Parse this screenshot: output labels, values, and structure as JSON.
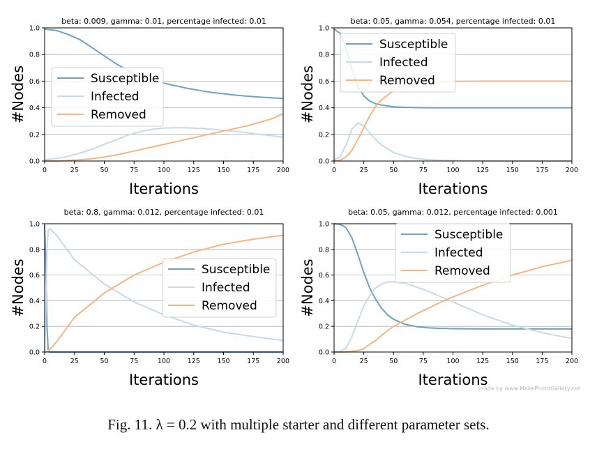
{
  "colors": {
    "susceptible": "#6fa0c6",
    "infected": "#c8d9ea",
    "removed": "#f6b684",
    "grid": "#b0b0b0",
    "axis": "#000000"
  },
  "caption": "Fig. 11.  λ = 0.2 with multiple starter and different parameter sets.",
  "watermark": "made by www.MakePhotoGallery.net",
  "chart_data": [
    {
      "type": "line",
      "title": "beta: 0.009, gamma: 0.01, percentage infected: 0.01",
      "xlabel": "Iterations",
      "ylabel": "#Nodes",
      "xlim": [
        0,
        200
      ],
      "ylim": [
        0,
        1.0
      ],
      "xticks": [
        0,
        25,
        50,
        75,
        100,
        125,
        150,
        175,
        200
      ],
      "yticks": [
        0.0,
        0.2,
        0.4,
        0.6,
        0.8,
        1.0
      ],
      "grid": "horizontal",
      "legend": "center-left",
      "x": [
        0,
        10,
        20,
        30,
        40,
        50,
        60,
        70,
        80,
        90,
        100,
        110,
        120,
        130,
        140,
        150,
        160,
        170,
        180,
        190,
        200
      ],
      "series": [
        {
          "name": "Susceptible",
          "values": [
            0.99,
            0.98,
            0.95,
            0.91,
            0.85,
            0.79,
            0.73,
            0.68,
            0.64,
            0.61,
            0.585,
            0.565,
            0.545,
            0.53,
            0.515,
            0.505,
            0.495,
            0.487,
            0.48,
            0.475,
            0.47
          ]
        },
        {
          "name": "Infected",
          "values": [
            0.01,
            0.02,
            0.035,
            0.06,
            0.09,
            0.125,
            0.16,
            0.195,
            0.22,
            0.238,
            0.247,
            0.25,
            0.249,
            0.245,
            0.239,
            0.231,
            0.222,
            0.212,
            0.2,
            0.19,
            0.178
          ]
        },
        {
          "name": "Removed",
          "values": [
            0.0,
            0.0,
            0.004,
            0.01,
            0.018,
            0.03,
            0.045,
            0.065,
            0.085,
            0.105,
            0.125,
            0.145,
            0.165,
            0.185,
            0.205,
            0.225,
            0.245,
            0.265,
            0.29,
            0.315,
            0.355
          ]
        }
      ]
    },
    {
      "type": "line",
      "title": "beta: 0.05, gamma: 0.054, percentage infected: 0.01",
      "xlabel": "Iterations",
      "ylabel": "#Nodes",
      "xlim": [
        0,
        200
      ],
      "ylim": [
        0,
        1.0
      ],
      "xticks": [
        0,
        25,
        50,
        75,
        100,
        125,
        150,
        175,
        200
      ],
      "yticks": [
        0.0,
        0.2,
        0.4,
        0.6,
        0.8,
        1.0
      ],
      "grid": "horizontal",
      "legend": "top-left",
      "x": [
        0,
        5,
        10,
        15,
        20,
        25,
        30,
        35,
        40,
        50,
        60,
        70,
        80,
        90,
        100,
        125,
        150,
        175,
        200
      ],
      "series": [
        {
          "name": "Susceptible",
          "values": [
            0.99,
            0.96,
            0.85,
            0.69,
            0.56,
            0.49,
            0.45,
            0.43,
            0.42,
            0.407,
            0.403,
            0.401,
            0.4,
            0.4,
            0.4,
            0.4,
            0.4,
            0.4,
            0.4
          ]
        },
        {
          "name": "Infected",
          "values": [
            0.01,
            0.03,
            0.12,
            0.24,
            0.285,
            0.265,
            0.21,
            0.16,
            0.12,
            0.065,
            0.035,
            0.018,
            0.01,
            0.005,
            0.003,
            0.001,
            0.0,
            0.0,
            0.0
          ]
        },
        {
          "name": "Removed",
          "values": [
            0.0,
            0.005,
            0.03,
            0.08,
            0.16,
            0.25,
            0.34,
            0.41,
            0.46,
            0.53,
            0.565,
            0.583,
            0.592,
            0.596,
            0.598,
            0.6,
            0.6,
            0.6,
            0.6
          ]
        }
      ]
    },
    {
      "type": "line",
      "title": "beta: 0.8, gamma: 0.012, percentage infected: 0.01",
      "xlabel": "Iterations",
      "ylabel": "#Nodes",
      "xlim": [
        0,
        200
      ],
      "ylim": [
        0,
        1.0
      ],
      "xticks": [
        0,
        25,
        50,
        75,
        100,
        125,
        150,
        175,
        200
      ],
      "yticks": [
        0.0,
        0.2,
        0.4,
        0.6,
        0.8,
        1.0
      ],
      "grid": "horizontal",
      "legend": "center-right",
      "x": [
        0,
        1,
        2,
        3,
        4,
        5,
        10,
        25,
        50,
        75,
        100,
        125,
        150,
        175,
        200
      ],
      "series": [
        {
          "name": "Susceptible",
          "values": [
            0.99,
            0.7,
            0.2,
            0.02,
            0.0,
            0.0,
            0.0,
            0.0,
            0.0,
            0.0,
            0.0,
            0.0,
            0.0,
            0.0,
            0.0
          ]
        },
        {
          "name": "Infected",
          "values": [
            0.01,
            0.3,
            0.79,
            0.95,
            0.96,
            0.96,
            0.91,
            0.72,
            0.53,
            0.39,
            0.29,
            0.21,
            0.155,
            0.12,
            0.09
          ]
        },
        {
          "name": "Removed",
          "values": [
            0.0,
            0.0,
            0.005,
            0.01,
            0.02,
            0.025,
            0.08,
            0.27,
            0.46,
            0.6,
            0.7,
            0.78,
            0.84,
            0.88,
            0.91
          ]
        }
      ]
    },
    {
      "type": "line",
      "title": "beta: 0.05, gamma: 0.012, percentage infected: 0.001",
      "xlabel": "Iterations",
      "ylabel": "#Nodes",
      "xlim": [
        0,
        200
      ],
      "ylim": [
        0,
        1.0
      ],
      "xticks": [
        0,
        25,
        50,
        75,
        100,
        125,
        150,
        175,
        200
      ],
      "yticks": [
        0.0,
        0.2,
        0.4,
        0.6,
        0.8,
        1.0
      ],
      "grid": "horizontal",
      "legend": "top-center",
      "x": [
        0,
        5,
        10,
        15,
        20,
        25,
        30,
        35,
        40,
        45,
        50,
        60,
        70,
        80,
        90,
        100,
        125,
        150,
        175,
        200
      ],
      "series": [
        {
          "name": "Susceptible",
          "values": [
            1.0,
            0.995,
            0.97,
            0.89,
            0.76,
            0.62,
            0.5,
            0.41,
            0.34,
            0.29,
            0.255,
            0.215,
            0.197,
            0.188,
            0.184,
            0.182,
            0.18,
            0.18,
            0.18,
            0.18
          ]
        },
        {
          "name": "Infected",
          "values": [
            0.001,
            0.005,
            0.03,
            0.12,
            0.24,
            0.36,
            0.44,
            0.5,
            0.53,
            0.545,
            0.548,
            0.535,
            0.505,
            0.47,
            0.43,
            0.39,
            0.29,
            0.21,
            0.15,
            0.105
          ]
        },
        {
          "name": "Removed",
          "values": [
            0.0,
            0.0,
            0.001,
            0.005,
            0.012,
            0.025,
            0.06,
            0.09,
            0.13,
            0.165,
            0.2,
            0.25,
            0.3,
            0.345,
            0.39,
            0.43,
            0.52,
            0.6,
            0.665,
            0.715
          ]
        }
      ]
    }
  ]
}
